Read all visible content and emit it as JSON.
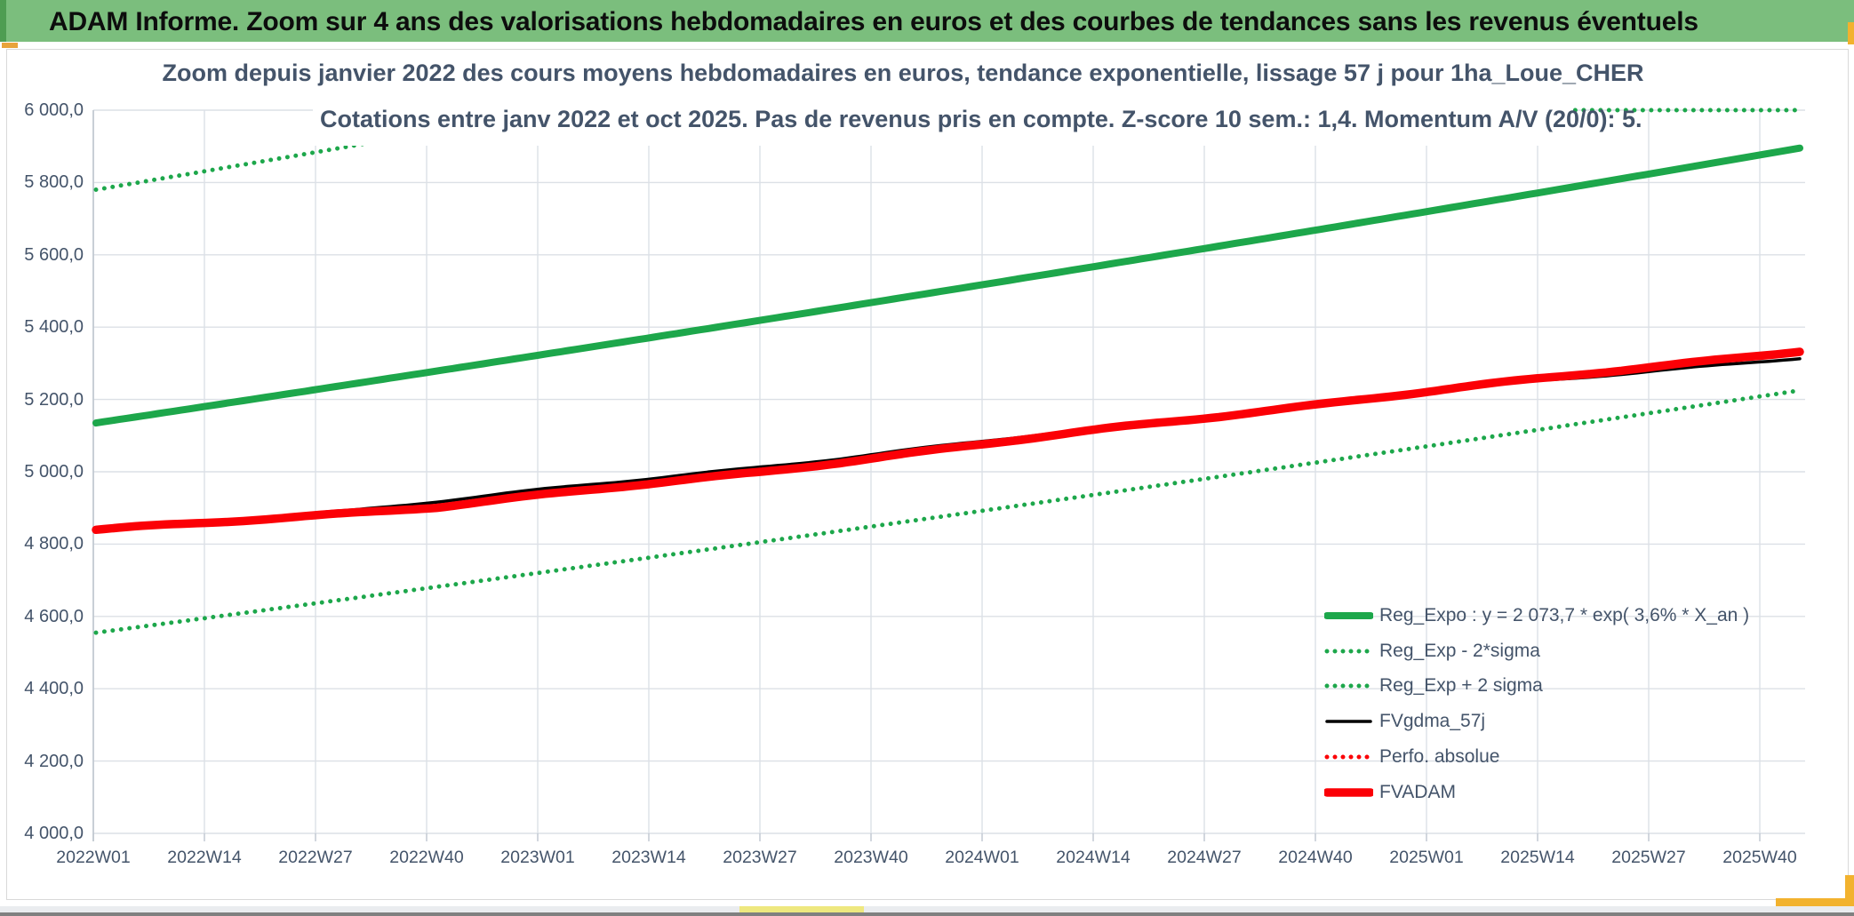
{
  "header": {
    "title": "ADAM Informe. Zoom sur 4 ans des valorisations hebdomadaires en euros et des courbes de tendances sans les revenus éventuels"
  },
  "chart_data": {
    "type": "line",
    "title_line1": "Zoom depuis janvier 2022 des cours moyens hebdomadaires en euros, tendance exponentielle, lissage 57 j pour 1ha_Loue_CHER",
    "title_line2": "Cotations entre janv 2022 et oct 2025. Pas de revenus pris en compte. Z-score 10 sem.: 1,4. Momentum A/V (20/0): 5.",
    "ylim": [
      4000,
      6000
    ],
    "ytick_step": 200,
    "ytick_labels": [
      "6 000,0",
      "5 800,0",
      "5 600,0",
      "5 400,0",
      "5 200,0",
      "5 000,0",
      "4 800,0",
      "4 600,0",
      "4 400,0",
      "4 200,0",
      "4 000,0"
    ],
    "xtick_labels": [
      "2022W01",
      "2022W14",
      "2022W27",
      "2022W40",
      "2023W01",
      "2023W14",
      "2023W27",
      "2023W40",
      "2024W01",
      "2024W14",
      "2024W27",
      "2024W40",
      "2025W01",
      "2025W14",
      "2025W27",
      "2025W40"
    ],
    "grid": true,
    "legend_position": "bottom-right",
    "series": [
      {
        "name": "Reg_Expo : y = 2 073,7 * exp( 3,6% *  X_an )",
        "color": "#1DA74B",
        "style": "solid",
        "width": 8,
        "shape": "exp",
        "start": 5135,
        "end": 5895
      },
      {
        "name": "Reg_Exp - 2*sigma",
        "color": "#1DA74B",
        "style": "dotted",
        "width": 5,
        "shape": "exp",
        "start": 4555,
        "end": 5225
      },
      {
        "name": "Reg_Exp + 2 sigma",
        "color": "#1DA74B",
        "style": "dotted",
        "width": 5,
        "shape": "exp",
        "start": 5780,
        "end": 6635,
        "clip_max": 6000
      },
      {
        "name": "FVgdma_57j",
        "color": "#000000",
        "style": "solid",
        "width": 3.5,
        "shape": "points",
        "t": [
          0,
          0.15,
          0.38,
          0.75,
          1
        ],
        "v": [
          4840,
          4894,
          5008,
          5208,
          5316
        ],
        "wiggle": true
      },
      {
        "name": "Perfo. absolue",
        "color": "#FB0006",
        "style": "dotted",
        "width": 5,
        "shape": "points",
        "t": [
          0,
          0.2,
          0.39,
          0.6,
          0.8,
          1
        ],
        "v": [
          4838,
          4903,
          5000,
          5122,
          5232,
          5335
        ],
        "wiggle": true,
        "visible_in_plot": false
      },
      {
        "name": "FVADAM",
        "color": "#FB0006",
        "style": "solid",
        "width": 9.5,
        "shape": "points",
        "t": [
          0,
          0.2,
          0.39,
          0.6,
          0.8,
          1
        ],
        "v": [
          4838,
          4903,
          5000,
          5122,
          5232,
          5335
        ],
        "wiggle": true
      }
    ]
  },
  "colors": {
    "header_bg": "#7BBE7D",
    "header_accent": "#4E9D52",
    "title_text": "#44546A",
    "axis_text": "#44546A",
    "gridline": "#DCE0E6",
    "axis_line": "#BFC6CF",
    "green_line": "#1DA74B",
    "red_line": "#FB0006",
    "gold_accent": "#F2B22E"
  }
}
